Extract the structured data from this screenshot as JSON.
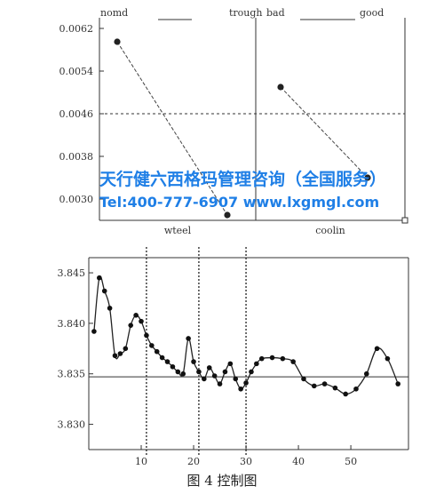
{
  "chart_data": [
    {
      "type": "line",
      "title": "",
      "panels": [
        {
          "left_label": "nomd",
          "right_label": "trough",
          "xlabel": "wteel",
          "x": [
            0,
            1
          ],
          "values": [
            0.00595,
            0.0027
          ]
        },
        {
          "left_label": "bad",
          "right_label": "good",
          "xlabel": "coolin",
          "x": [
            0,
            1
          ],
          "values": [
            0.0051,
            0.0034
          ]
        }
      ],
      "yticks": [
        "0.0062",
        "0.0054",
        "0.0046",
        "0.0038",
        "0.0030"
      ],
      "ylim": [
        0.0026,
        0.0064
      ],
      "mean_line": 0.0046,
      "grid": false,
      "legend": "none"
    },
    {
      "type": "line",
      "xticks": [
        10,
        20,
        30,
        40,
        50
      ],
      "yticks": [
        "3.845",
        "3.840",
        "3.835",
        "3.830"
      ],
      "xlim": [
        0,
        61
      ],
      "ylim": [
        3.8275,
        3.8465
      ],
      "center_line": 3.8347,
      "dotted_vlines": [
        11,
        21,
        30
      ],
      "x": [
        1,
        2,
        3,
        4,
        5,
        6,
        7,
        8,
        9,
        10,
        11,
        12,
        13,
        14,
        15,
        16,
        17,
        18,
        19,
        20,
        21,
        22,
        23,
        24,
        25,
        26,
        27,
        28,
        29,
        30,
        31,
        32,
        33,
        35,
        37,
        39,
        41,
        43,
        45,
        47,
        49,
        51,
        53,
        55,
        57,
        59
      ],
      "values": [
        3.8392,
        3.8445,
        3.8432,
        3.8415,
        3.8368,
        3.837,
        3.8375,
        3.8398,
        3.8408,
        3.8402,
        3.8388,
        3.8378,
        3.8372,
        3.8366,
        3.8362,
        3.8357,
        3.8352,
        3.835,
        3.8385,
        3.8362,
        3.8352,
        3.8345,
        3.8356,
        3.8348,
        3.834,
        3.8352,
        3.836,
        3.8345,
        3.8335,
        3.8341,
        3.8352,
        3.836,
        3.8365,
        3.8366,
        3.8365,
        3.8362,
        3.8345,
        3.8338,
        3.834,
        3.8336,
        3.833,
        3.8335,
        3.835,
        3.8375,
        3.8365,
        3.834
      ],
      "grid": false,
      "legend": "none"
    }
  ],
  "watermark": {
    "line1": "天行健六西格玛管理咨询（全国服务）",
    "line2": "Tel:400-777-6907 www.lxgmgl.com"
  },
  "caption": "图 4   控制图"
}
